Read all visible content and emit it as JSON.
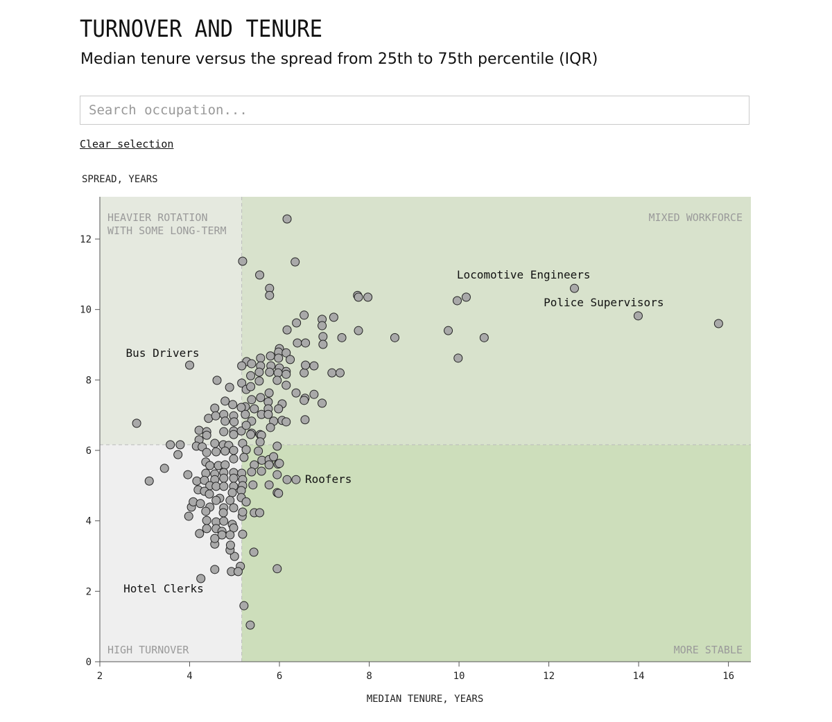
{
  "header": {
    "title": "TURNOVER AND TENURE",
    "subtitle": "Median tenure versus the spread from 25th to 75th percentile (IQR)"
  },
  "search": {
    "placeholder": "Search occupation...",
    "value": ""
  },
  "clear_selection_label": "Clear selection",
  "chart_data": {
    "type": "scatter",
    "title": "",
    "xlabel": "MEDIAN TENURE, YEARS",
    "ylabel": "SPREAD, YEARS",
    "xlim": [
      2,
      16.5
    ],
    "ylim": [
      0,
      13.2
    ],
    "x_ticks": [
      "2",
      "4",
      "6",
      "8",
      "10",
      "12",
      "14",
      "16"
    ],
    "y_ticks": [
      "0",
      "2",
      "4",
      "6",
      "8",
      "10",
      "12"
    ],
    "grid": false,
    "thresholds": {
      "x": 5.16,
      "y": 6.16
    },
    "quadrants": {
      "top_left": "HEAVIER ROTATION\nWITH SOME LONG-TERM",
      "top_right": "MIXED WORKFORCE",
      "bottom_left": "HIGH TURNOVER",
      "bottom_right": "MORE STABLE"
    },
    "colors": {
      "top_left": "#e5e9df",
      "top_right": "#d8e2cc",
      "bottom_left": "#efefef",
      "bottom_right": "#cddebb",
      "point_fill": "#a9a9a9",
      "point_stroke": "#222222"
    },
    "annotations": [
      {
        "label": "Locomotive Engineers",
        "x": 12.57,
        "y": 10.6
      },
      {
        "label": "Police Supervisors",
        "x": 13.99,
        "y": 9.82
      },
      {
        "label": "Bus Drivers",
        "x": 4.0,
        "y": 8.42
      },
      {
        "label": "Roofers",
        "x": 6.37,
        "y": 5.17
      },
      {
        "label": "Hotel Clerks",
        "x": 4.25,
        "y": 2.36
      }
    ],
    "points": [
      [
        6.17,
        12.57
      ],
      [
        5.18,
        11.37
      ],
      [
        6.35,
        11.35
      ],
      [
        5.56,
        10.98
      ],
      [
        5.78,
        10.6
      ],
      [
        5.78,
        10.4
      ],
      [
        7.74,
        10.4
      ],
      [
        7.76,
        10.35
      ],
      [
        7.97,
        10.35
      ],
      [
        9.96,
        10.25
      ],
      [
        10.16,
        10.35
      ],
      [
        12.57,
        10.6
      ],
      [
        13.99,
        9.82
      ],
      [
        15.78,
        9.6
      ],
      [
        6.55,
        9.84
      ],
      [
        6.95,
        9.72
      ],
      [
        6.95,
        9.54
      ],
      [
        7.21,
        9.78
      ],
      [
        6.38,
        9.62
      ],
      [
        6.17,
        9.42
      ],
      [
        7.76,
        9.4
      ],
      [
        9.76,
        9.4
      ],
      [
        7.39,
        9.2
      ],
      [
        8.57,
        9.2
      ],
      [
        10.56,
        9.2
      ],
      [
        6.97,
        9.23
      ],
      [
        6.97,
        9.01
      ],
      [
        6.4,
        9.05
      ],
      [
        6.58,
        9.05
      ],
      [
        9.98,
        8.62
      ],
      [
        4.0,
        8.42
      ],
      [
        7.17,
        8.2
      ],
      [
        7.35,
        8.2
      ],
      [
        6.77,
        8.4
      ],
      [
        6.55,
        8.2
      ],
      [
        6.58,
        8.42
      ],
      [
        6.77,
        7.59
      ],
      [
        6.95,
        7.34
      ],
      [
        6.57,
        7.48
      ],
      [
        6.55,
        7.42
      ],
      [
        2.82,
        6.77
      ],
      [
        3.1,
        5.13
      ],
      [
        3.44,
        5.49
      ],
      [
        3.57,
        6.16
      ],
      [
        3.79,
        6.16
      ],
      [
        4.25,
        2.36
      ],
      [
        5.21,
        1.59
      ],
      [
        5.35,
        1.04
      ],
      [
        5.95,
        2.64
      ],
      [
        5.43,
        3.11
      ],
      [
        4.56,
        2.62
      ],
      [
        5.13,
        2.71
      ],
      [
        4.93,
        2.56
      ],
      [
        5.08,
        2.56
      ],
      [
        5.0,
        2.99
      ],
      [
        4.9,
        3.17
      ],
      [
        6.37,
        5.17
      ],
      [
        6.17,
        5.17
      ],
      [
        5.95,
        4.8
      ],
      [
        5.98,
        4.78
      ],
      [
        5.44,
        4.23
      ],
      [
        5.56,
        4.23
      ],
      [
        5.77,
        5.02
      ],
      [
        5.97,
        5.61
      ],
      [
        5.95,
        6.12
      ],
      [
        3.74,
        5.88
      ],
      [
        3.96,
        5.31
      ],
      [
        4.16,
        5.13
      ],
      [
        3.98,
        4.13
      ],
      [
        4.04,
        4.39
      ],
      [
        4.08,
        4.54
      ],
      [
        4.22,
        3.64
      ],
      [
        5.18,
        3.62
      ],
      [
        5.17,
        4.13
      ],
      [
        4.56,
        3.34
      ],
      [
        4.91,
        3.31
      ],
      [
        6.0,
        8.89
      ],
      [
        5.98,
        8.79
      ],
      [
        6.15,
        8.77
      ],
      [
        6.24,
        8.58
      ],
      [
        5.8,
        8.68
      ],
      [
        5.98,
        8.62
      ],
      [
        5.58,
        8.62
      ],
      [
        5.27,
        8.52
      ],
      [
        5.38,
        8.46
      ],
      [
        5.16,
        8.4
      ],
      [
        5.58,
        8.4
      ],
      [
        5.81,
        8.4
      ],
      [
        6.0,
        8.34
      ],
      [
        6.15,
        8.24
      ],
      [
        5.55,
        8.22
      ],
      [
        5.36,
        8.12
      ],
      [
        5.78,
        8.22
      ],
      [
        5.97,
        8.2
      ],
      [
        6.15,
        8.16
      ],
      [
        5.55,
        7.97
      ],
      [
        5.95,
        7.99
      ],
      [
        4.61,
        7.99
      ],
      [
        4.89,
        7.79
      ],
      [
        5.16,
        7.91
      ],
      [
        5.26,
        7.73
      ],
      [
        5.36,
        7.81
      ],
      [
        6.15,
        7.85
      ],
      [
        5.77,
        7.63
      ],
      [
        6.37,
        7.63
      ],
      [
        5.58,
        7.5
      ],
      [
        5.38,
        7.44
      ],
      [
        4.79,
        7.4
      ],
      [
        4.96,
        7.3
      ],
      [
        5.75,
        7.38
      ],
      [
        6.06,
        7.32
      ],
      [
        4.56,
        7.2
      ],
      [
        5.24,
        7.24
      ],
      [
        5.44,
        7.18
      ],
      [
        5.75,
        7.18
      ],
      [
        5.98,
        7.18
      ],
      [
        5.15,
        7.22
      ],
      [
        4.42,
        6.91
      ],
      [
        4.58,
        6.98
      ],
      [
        4.76,
        7.02
      ],
      [
        4.98,
        6.98
      ],
      [
        5.24,
        7.02
      ],
      [
        5.6,
        7.02
      ],
      [
        5.75,
        7.02
      ],
      [
        4.79,
        6.83
      ],
      [
        4.99,
        6.81
      ],
      [
        5.38,
        6.83
      ],
      [
        5.87,
        6.83
      ],
      [
        6.06,
        6.85
      ],
      [
        6.15,
        6.81
      ],
      [
        5.8,
        6.65
      ],
      [
        4.21,
        6.57
      ],
      [
        4.38,
        6.53
      ],
      [
        4.76,
        6.53
      ],
      [
        4.98,
        6.55
      ],
      [
        5.15,
        6.55
      ],
      [
        5.26,
        6.71
      ],
      [
        5.38,
        6.49
      ],
      [
        5.57,
        6.45
      ],
      [
        6.57,
        6.87
      ],
      [
        4.38,
        6.43
      ],
      [
        4.98,
        6.45
      ],
      [
        5.36,
        6.45
      ],
      [
        5.6,
        6.43
      ],
      [
        4.21,
        6.3
      ],
      [
        4.56,
        6.2
      ],
      [
        4.75,
        6.16
      ],
      [
        4.87,
        6.14
      ],
      [
        5.18,
        6.2
      ],
      [
        5.57,
        6.24
      ],
      [
        4.15,
        6.12
      ],
      [
        4.28,
        6.1
      ],
      [
        4.38,
        5.94
      ],
      [
        4.59,
        5.96
      ],
      [
        4.79,
        5.98
      ],
      [
        4.98,
        6.0
      ],
      [
        5.26,
        6.02
      ],
      [
        5.53,
        5.98
      ],
      [
        4.36,
        5.67
      ],
      [
        4.45,
        5.57
      ],
      [
        4.64,
        5.57
      ],
      [
        4.79,
        5.59
      ],
      [
        4.98,
        5.76
      ],
      [
        5.21,
        5.8
      ],
      [
        5.44,
        5.59
      ],
      [
        5.61,
        5.72
      ],
      [
        5.77,
        5.74
      ],
      [
        5.87,
        5.82
      ],
      [
        6.0,
        5.63
      ],
      [
        5.77,
        5.59
      ],
      [
        4.36,
        5.35
      ],
      [
        4.56,
        5.33
      ],
      [
        4.76,
        5.37
      ],
      [
        4.98,
        5.37
      ],
      [
        5.16,
        5.35
      ],
      [
        5.38,
        5.39
      ],
      [
        5.6,
        5.41
      ],
      [
        5.95,
        5.31
      ],
      [
        4.33,
        5.15
      ],
      [
        4.56,
        5.17
      ],
      [
        4.76,
        5.21
      ],
      [
        4.98,
        5.21
      ],
      [
        5.18,
        5.17
      ],
      [
        5.41,
        5.02
      ],
      [
        4.45,
        5.0
      ],
      [
        4.59,
        4.98
      ],
      [
        4.76,
        4.98
      ],
      [
        4.98,
        4.98
      ],
      [
        5.18,
        5.0
      ],
      [
        4.19,
        4.88
      ],
      [
        4.33,
        4.84
      ],
      [
        4.44,
        4.76
      ],
      [
        4.95,
        4.8
      ],
      [
        5.15,
        4.86
      ],
      [
        4.24,
        4.49
      ],
      [
        4.67,
        4.64
      ],
      [
        4.59,
        4.58
      ],
      [
        4.9,
        4.58
      ],
      [
        5.15,
        4.66
      ],
      [
        5.26,
        4.54
      ],
      [
        4.45,
        4.39
      ],
      [
        4.76,
        4.37
      ],
      [
        4.98,
        4.37
      ],
      [
        4.36,
        4.27
      ],
      [
        4.75,
        4.23
      ],
      [
        5.18,
        4.25
      ],
      [
        4.38,
        4.01
      ],
      [
        4.59,
        3.97
      ],
      [
        4.76,
        3.99
      ],
      [
        4.95,
        3.9
      ],
      [
        4.38,
        3.78
      ],
      [
        4.59,
        3.78
      ],
      [
        4.72,
        3.7
      ],
      [
        4.98,
        3.8
      ],
      [
        4.72,
        3.6
      ],
      [
        4.9,
        3.6
      ],
      [
        4.56,
        3.5
      ]
    ]
  }
}
